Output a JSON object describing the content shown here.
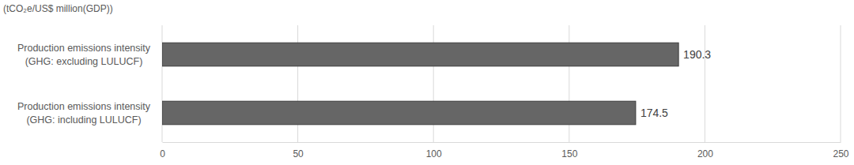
{
  "chart_data": {
    "type": "bar",
    "orientation": "horizontal",
    "title": "(tCO₂e/US$ million(GDP))",
    "categories": [
      "Production emissions intensity\n(GHG: excluding LULUCF)",
      "Production emissions intensity\n(GHG: including LULUCF)"
    ],
    "values": [
      190.3,
      174.5
    ],
    "color": "#666666",
    "xlim": [
      0,
      250
    ],
    "xticks": [
      0,
      50,
      100,
      150,
      200,
      250
    ],
    "grid": true,
    "data_labels": true
  }
}
